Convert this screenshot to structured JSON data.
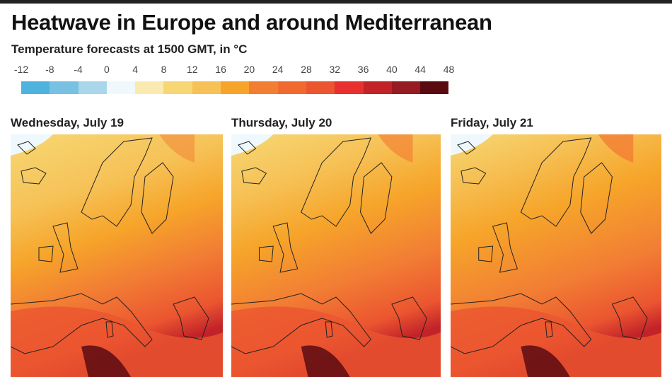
{
  "title": "Heatwave in Europe and around Mediterranean",
  "subtitle": "Temperature forecasts at 1500 GMT, in °C",
  "legend": {
    "ticks": [
      "-12",
      "-8",
      "-4",
      "0",
      "4",
      "8",
      "12",
      "16",
      "20",
      "24",
      "28",
      "32",
      "36",
      "40",
      "44",
      "48"
    ],
    "colors": [
      "#4eb3de",
      "#79c1e2",
      "#aad6ea",
      "#eff9fd",
      "#fbeab0",
      "#f7d774",
      "#f6c257",
      "#f6a52a",
      "#f27e34",
      "#f06a2f",
      "#eb5530",
      "#e8312e",
      "#c22329",
      "#961b22",
      "#5c0a12"
    ]
  },
  "panels": [
    {
      "title": "Wednesday, July 19"
    },
    {
      "title": "Thursday, July 20"
    },
    {
      "title": "Friday, July 21"
    }
  ]
}
